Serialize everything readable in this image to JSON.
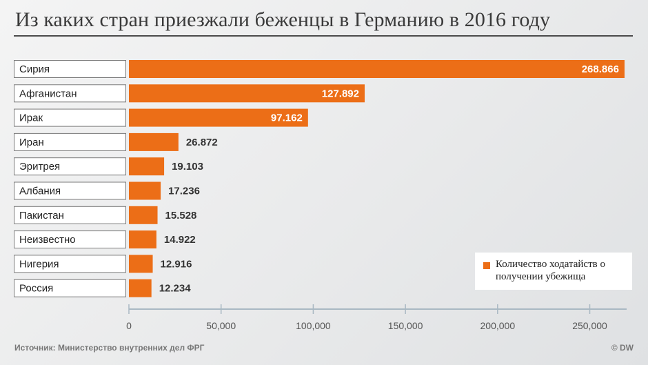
{
  "title": "Из каких стран приезжали беженцы в Германию в 2016 году",
  "source": "Источник: Министерство внутренних дел ФРГ",
  "credit": "© DW",
  "colors": {
    "bar": "#ec6e17",
    "axis": "#a9b8c3"
  },
  "chart_data": {
    "type": "bar",
    "orientation": "horizontal",
    "title": "Из каких стран приезжали беженцы в Германию в 2016 году",
    "categories": [
      "Сирия",
      "Афганистан",
      "Ирак",
      "Иран",
      "Эритрея",
      "Албания",
      "Пакистан",
      "Неизвестно",
      "Нигерия",
      "Россия"
    ],
    "values": [
      268866,
      127892,
      97162,
      26872,
      19103,
      17236,
      15528,
      14922,
      12916,
      12234
    ],
    "value_labels": [
      "268.866",
      "127.892",
      "97.162",
      "26.872",
      "19.103",
      "17.236",
      "15.528",
      "14.922",
      "12.916",
      "12.234"
    ],
    "xlim": [
      0,
      270000
    ],
    "xticks": [
      0,
      50000,
      100000,
      150000,
      200000,
      250000
    ],
    "xtick_labels": [
      "0",
      "50,000",
      "100,000",
      "150,000",
      "200,000",
      "250,000"
    ],
    "legend": "Количество ходатайств о получении убежища",
    "legend_position": "bottom-right",
    "xlabel": "",
    "ylabel": ""
  }
}
